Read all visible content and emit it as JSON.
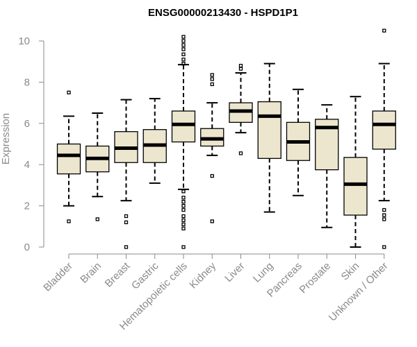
{
  "chart_data": {
    "type": "boxplot",
    "title": "ENSG00000213430 - HSPD1P1",
    "xlabel": "",
    "ylabel": "Expression",
    "ylim": [
      0,
      10.5
    ],
    "yticks": [
      0,
      2,
      4,
      6,
      8,
      10
    ],
    "box_fill": "#ede6cf",
    "categories": [
      "Bladder",
      "Brain",
      "Breast",
      "Gastric",
      "Hematopoietic cells",
      "Kidney",
      "Liver",
      "Lung",
      "Pancreas",
      "Prostate",
      "Skin",
      "Unknown / Other"
    ],
    "boxes": [
      {
        "name": "Bladder",
        "whislo": 2.0,
        "q1": 3.55,
        "med": 4.45,
        "q3": 5.0,
        "whishi": 6.35,
        "fliers": [
          7.5,
          1.25
        ]
      },
      {
        "name": "Brain",
        "whislo": 2.45,
        "q1": 3.65,
        "med": 4.3,
        "q3": 4.9,
        "whishi": 6.5,
        "fliers": [
          1.35
        ]
      },
      {
        "name": "Breast",
        "whislo": 2.25,
        "q1": 4.1,
        "med": 4.8,
        "q3": 5.6,
        "whishi": 7.15,
        "fliers": [
          1.5,
          1.2,
          0.0
        ]
      },
      {
        "name": "Gastric",
        "whislo": 3.1,
        "q1": 4.1,
        "med": 4.95,
        "q3": 5.7,
        "whishi": 7.2,
        "fliers": []
      },
      {
        "name": "Hematopoietic cells",
        "whislo": 2.8,
        "q1": 5.1,
        "med": 5.95,
        "q3": 6.6,
        "whishi": 8.85,
        "fliers": [
          10.2,
          10.0,
          9.8,
          9.6,
          9.35,
          9.1,
          8.9,
          2.7,
          2.4,
          2.2,
          2.0,
          1.8,
          1.5,
          1.3,
          1.1,
          0.9,
          0.0
        ]
      },
      {
        "name": "Kidney",
        "whislo": 4.45,
        "q1": 4.9,
        "med": 5.25,
        "q3": 5.75,
        "whishi": 7.0,
        "fliers": [
          8.35,
          8.15,
          7.9,
          3.45,
          1.25
        ]
      },
      {
        "name": "Liver",
        "whislo": 5.55,
        "q1": 6.05,
        "med": 6.6,
        "q3": 7.0,
        "whishi": 8.45,
        "fliers": [
          8.8,
          8.65,
          4.55
        ]
      },
      {
        "name": "Lung",
        "whislo": 1.7,
        "q1": 4.3,
        "med": 6.35,
        "q3": 7.05,
        "whishi": 8.9,
        "fliers": []
      },
      {
        "name": "Pancreas",
        "whislo": 2.5,
        "q1": 4.2,
        "med": 5.1,
        "q3": 6.05,
        "whishi": 7.65,
        "fliers": []
      },
      {
        "name": "Prostate",
        "whislo": 0.95,
        "q1": 3.75,
        "med": 5.8,
        "q3": 6.2,
        "whishi": 6.9,
        "fliers": []
      },
      {
        "name": "Skin",
        "whislo": 0.0,
        "q1": 1.55,
        "med": 3.05,
        "q3": 4.35,
        "whishi": 7.3,
        "fliers": []
      },
      {
        "name": "Unknown / Other",
        "whislo": 2.25,
        "q1": 4.75,
        "med": 5.95,
        "q3": 6.6,
        "whishi": 8.9,
        "fliers": [
          10.5,
          1.8,
          1.55,
          1.35,
          0.0
        ]
      }
    ]
  }
}
